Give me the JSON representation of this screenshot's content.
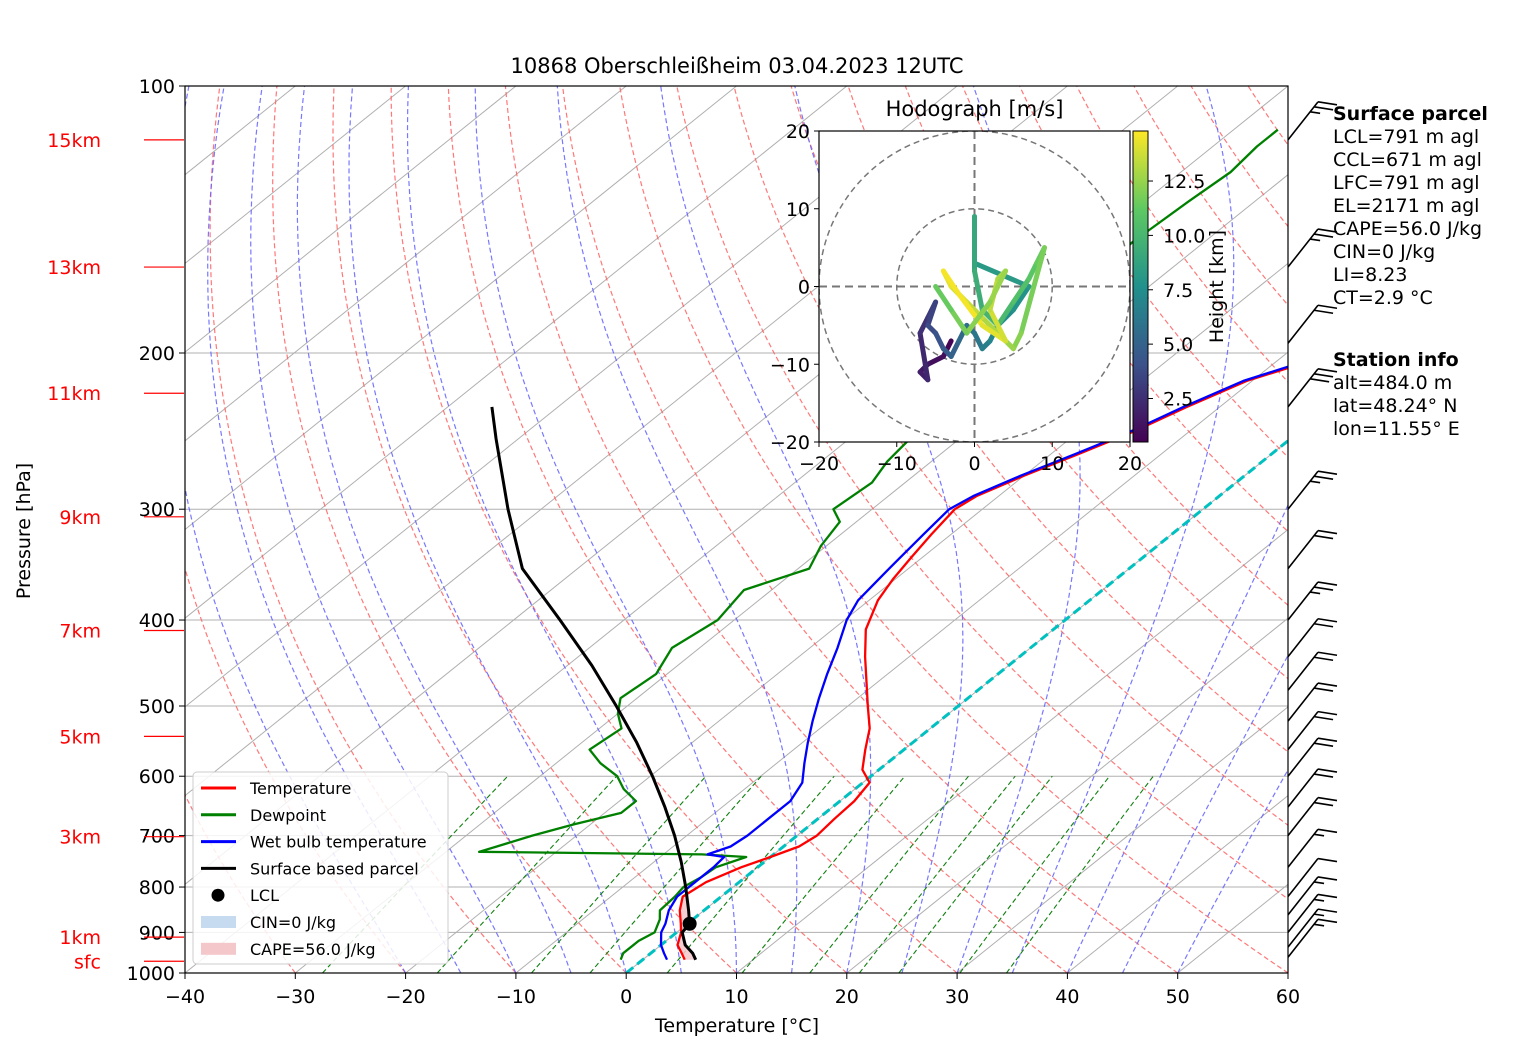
{
  "chart_data": {
    "type": "skew-t",
    "title": "10868 Oberschleißheim 03.04.2023 12UTC",
    "xlabel": "Temperature [°C]",
    "ylabel": "Pressure [hPa]",
    "xlim": [
      -40,
      60
    ],
    "ylim": [
      1000,
      100
    ],
    "log_pressure": true,
    "grid": true,
    "x_ticks": [
      -40,
      -30,
      -20,
      -10,
      0,
      10,
      20,
      30,
      40,
      50,
      60
    ],
    "x_tick_labels": [
      "−40",
      "−30",
      "−20",
      "−10",
      "0",
      "10",
      "20",
      "30",
      "40",
      "50",
      "60"
    ],
    "y_ticks": [
      1000,
      900,
      800,
      700,
      600,
      500,
      400,
      300,
      200,
      100
    ],
    "height_labels": [
      {
        "label": "sfc",
        "p": 970
      },
      {
        "label": "1km",
        "p": 911
      },
      {
        "label": "3km",
        "p": 702
      },
      {
        "label": "5km",
        "p": 541
      },
      {
        "label": "7km",
        "p": 411
      },
      {
        "label": "9km",
        "p": 306
      },
      {
        "label": "11km",
        "p": 222
      },
      {
        "label": "13km",
        "p": 160
      },
      {
        "label": "15km",
        "p": 115
      }
    ],
    "legend": {
      "placement": "lower-left",
      "entries": [
        {
          "label": "Temperature",
          "color": "#ff0000",
          "kind": "line"
        },
        {
          "label": "Dewpoint",
          "color": "#008000",
          "kind": "line"
        },
        {
          "label": "Wet bulb temperature",
          "color": "#0000ff",
          "kind": "line"
        },
        {
          "label": "Surface based parcel",
          "color": "#000000",
          "kind": "line"
        },
        {
          "label": "LCL",
          "color": "#000000",
          "kind": "dot"
        },
        {
          "label": "CIN=0 J/kg",
          "color": "#c6dbef",
          "kind": "patch"
        },
        {
          "label": "CAPE=56.0 J/kg",
          "color": "#f4c7cb",
          "kind": "patch"
        }
      ]
    },
    "series": [
      {
        "name": "Temperature",
        "color": "#ff0000",
        "points": [
          [
            966,
            3.8
          ],
          [
            950,
            2.8
          ],
          [
            930,
            1.5
          ],
          [
            900,
            0.4
          ],
          [
            880,
            -0.6
          ],
          [
            850,
            -2.2
          ],
          [
            820,
            -3.5
          ],
          [
            790,
            -3.0
          ],
          [
            760,
            -1.5
          ],
          [
            740,
            0.0
          ],
          [
            720,
            1.4
          ],
          [
            700,
            1.8
          ],
          [
            670,
            1.5
          ],
          [
            640,
            1.3
          ],
          [
            610,
            0.6
          ],
          [
            590,
            -1.5
          ],
          [
            560,
            -3.5
          ],
          [
            530,
            -5.5
          ],
          [
            500,
            -8.2
          ],
          [
            470,
            -11.0
          ],
          [
            440,
            -14.0
          ],
          [
            410,
            -17.0
          ],
          [
            380,
            -19.2
          ],
          [
            360,
            -20.2
          ],
          [
            340,
            -21.0
          ],
          [
            320,
            -21.8
          ],
          [
            300,
            -22.5
          ],
          [
            290,
            -22.0
          ],
          [
            275,
            -20.0
          ],
          [
            260,
            -17.5
          ],
          [
            245,
            -15.0
          ],
          [
            230,
            -13.0
          ],
          [
            215,
            -10.5
          ],
          [
            200,
            -5.5
          ],
          [
            185,
            -4.0
          ],
          [
            172,
            -3.2
          ],
          [
            160,
            0.0
          ],
          [
            150,
            3.0
          ],
          [
            140,
            4.0
          ],
          [
            130,
            4.5
          ],
          [
            120,
            5.7
          ],
          [
            112,
            9.0
          ],
          [
            107,
            10.0
          ]
        ]
      },
      {
        "name": "Dewpoint",
        "color": "#008000",
        "points": [
          [
            966,
            -2.0
          ],
          [
            950,
            -2.5
          ],
          [
            920,
            -2.5
          ],
          [
            900,
            -2.0
          ],
          [
            870,
            -3.0
          ],
          [
            850,
            -4.0
          ],
          [
            820,
            -4.2
          ],
          [
            800,
            -4.5
          ],
          [
            780,
            -4.0
          ],
          [
            760,
            -3.8
          ],
          [
            740,
            -2.2
          ],
          [
            735,
            -6.5
          ],
          [
            730,
            -27.0
          ],
          [
            720,
            -26.0
          ],
          [
            700,
            -24.0
          ],
          [
            680,
            -21.5
          ],
          [
            660,
            -18.5
          ],
          [
            640,
            -18.5
          ],
          [
            620,
            -21.0
          ],
          [
            600,
            -23.0
          ],
          [
            580,
            -26.0
          ],
          [
            560,
            -28.5
          ],
          [
            530,
            -28.0
          ],
          [
            510,
            -30.0
          ],
          [
            490,
            -31.5
          ],
          [
            460,
            -31.0
          ],
          [
            430,
            -32.5
          ],
          [
            400,
            -31.5
          ],
          [
            370,
            -32.5
          ],
          [
            350,
            -29.0
          ],
          [
            330,
            -30.5
          ],
          [
            310,
            -31.5
          ],
          [
            300,
            -33.5
          ],
          [
            280,
            -33.0
          ],
          [
            265,
            -34.0
          ],
          [
            250,
            -34.5
          ],
          [
            240,
            -35.5
          ],
          [
            230,
            -37.0
          ],
          [
            220,
            -38.0
          ],
          [
            210,
            -37.5
          ],
          [
            200,
            -37.0
          ],
          [
            190,
            -37.5
          ],
          [
            180,
            -37.0
          ],
          [
            165,
            -36.0
          ],
          [
            150,
            -36.5
          ],
          [
            135,
            -36.0
          ],
          [
            125,
            -35.5
          ],
          [
            117,
            -36.0
          ],
          [
            112,
            -36.0
          ]
        ]
      },
      {
        "name": "Wet bulb temperature",
        "color": "#0000ff",
        "points": [
          [
            966,
            2.2
          ],
          [
            950,
            1.2
          ],
          [
            930,
            0.0
          ],
          [
            900,
            -1.4
          ],
          [
            880,
            -2.0
          ],
          [
            850,
            -3.2
          ],
          [
            820,
            -4.0
          ],
          [
            790,
            -4.0
          ],
          [
            760,
            -4.0
          ],
          [
            740,
            -4.2
          ],
          [
            735,
            -6.0
          ],
          [
            720,
            -4.8
          ],
          [
            700,
            -4.5
          ],
          [
            670,
            -4.5
          ],
          [
            640,
            -4.5
          ],
          [
            610,
            -5.5
          ],
          [
            580,
            -7.5
          ],
          [
            550,
            -9.5
          ],
          [
            520,
            -11.5
          ],
          [
            490,
            -13.5
          ],
          [
            460,
            -15.5
          ],
          [
            430,
            -17.5
          ],
          [
            400,
            -19.8
          ],
          [
            380,
            -21.0
          ],
          [
            360,
            -21.5
          ],
          [
            340,
            -22.0
          ],
          [
            320,
            -22.5
          ],
          [
            300,
            -23.0
          ],
          [
            290,
            -22.3
          ],
          [
            275,
            -20.3
          ],
          [
            260,
            -17.8
          ],
          [
            245,
            -15.3
          ],
          [
            230,
            -13.3
          ],
          [
            215,
            -10.8
          ],
          [
            200,
            -6.0
          ],
          [
            185,
            -4.5
          ],
          [
            172,
            -3.8
          ],
          [
            160,
            -0.5
          ],
          [
            150,
            2.5
          ],
          [
            140,
            3.5
          ],
          [
            130,
            4.0
          ],
          [
            120,
            5.2
          ],
          [
            112,
            8.5
          ],
          [
            107,
            9.5
          ]
        ]
      },
      {
        "name": "Surface based parcel",
        "color": "#000000",
        "points": [
          [
            966,
            4.8
          ],
          [
            950,
            3.8
          ],
          [
            930,
            2.2
          ],
          [
            900,
            0.5
          ],
          [
            880,
            0.2
          ],
          [
            850,
            -1.4
          ],
          [
            800,
            -4.3
          ],
          [
            750,
            -7.5
          ],
          [
            700,
            -11.1
          ],
          [
            650,
            -15.2
          ],
          [
            600,
            -19.8
          ],
          [
            550,
            -25.0
          ],
          [
            500,
            -31.0
          ],
          [
            450,
            -37.8
          ],
          [
            400,
            -45.8
          ],
          [
            350,
            -55.0
          ],
          [
            300,
            -63.0
          ],
          [
            250,
            -72.0
          ],
          [
            230,
            -76.0
          ]
        ]
      }
    ],
    "lcl": {
      "p": 880,
      "t": 0.2
    },
    "zero_isotherm": {
      "color": "#00c0c0"
    },
    "wind_barbs": [
      {
        "p": 960,
        "speed_kt": 15
      },
      {
        "p": 935,
        "speed_kt": 15
      },
      {
        "p": 900,
        "speed_kt": 15
      },
      {
        "p": 860,
        "speed_kt": 15
      },
      {
        "p": 820,
        "speed_kt": 10
      },
      {
        "p": 760,
        "speed_kt": 15
      },
      {
        "p": 700,
        "speed_kt": 20
      },
      {
        "p": 650,
        "speed_kt": 20
      },
      {
        "p": 600,
        "speed_kt": 20
      },
      {
        "p": 560,
        "speed_kt": 20
      },
      {
        "p": 520,
        "speed_kt": 20
      },
      {
        "p": 480,
        "speed_kt": 20
      },
      {
        "p": 440,
        "speed_kt": 20
      },
      {
        "p": 400,
        "speed_kt": 25
      },
      {
        "p": 350,
        "speed_kt": 20
      },
      {
        "p": 300,
        "speed_kt": 25
      },
      {
        "p": 230,
        "speed_kt": 30
      },
      {
        "p": 195,
        "speed_kt": 20
      },
      {
        "p": 160,
        "speed_kt": 25
      },
      {
        "p": 115,
        "speed_kt": 25
      }
    ],
    "hodograph": {
      "title": "Hodograph [m/s]",
      "xlim": [
        -20,
        20
      ],
      "ylim": [
        -20,
        20
      ],
      "ticks": [
        -20,
        -10,
        0,
        10,
        20
      ],
      "tick_labels": [
        "−20",
        "−10",
        "0",
        "10",
        "20"
      ],
      "rings": [
        10,
        20
      ],
      "colorbar": {
        "label": "Height [km]",
        "min": 0.5,
        "max": 14.8,
        "ticks": [
          2.5,
          5.0,
          7.5,
          10.0,
          12.5
        ],
        "tick_labels": [
          "2.5",
          "5.0",
          "7.5",
          "10.0",
          "12.5"
        ]
      },
      "points": [
        [
          -3,
          -7,
          0.5
        ],
        [
          -4,
          -9,
          0.9
        ],
        [
          -6,
          -10,
          1.3
        ],
        [
          -7,
          -11,
          1.7
        ],
        [
          -6,
          -12,
          2.0
        ],
        [
          -7,
          -6,
          2.4
        ],
        [
          -6,
          -4,
          2.8
        ],
        [
          -5,
          -2,
          3.2
        ],
        [
          -6,
          -5,
          3.6
        ],
        [
          -5,
          -6,
          4.0
        ],
        [
          -4,
          -8,
          4.4
        ],
        [
          -3,
          -9,
          4.8
        ],
        [
          -2,
          -7,
          5.2
        ],
        [
          -1,
          -5,
          5.6
        ],
        [
          0,
          -6,
          6.0
        ],
        [
          1,
          -8,
          6.4
        ],
        [
          2,
          -7,
          6.8
        ],
        [
          3,
          -5,
          7.2
        ],
        [
          5,
          -3,
          7.6
        ],
        [
          7,
          0,
          8.0
        ],
        [
          0,
          3,
          8.4
        ],
        [
          0,
          9,
          8.8
        ],
        [
          0,
          2,
          9.2
        ],
        [
          1,
          -3,
          9.6
        ],
        [
          3,
          -5,
          10.0
        ],
        [
          5,
          -2,
          10.4
        ],
        [
          7,
          1,
          10.8
        ],
        [
          8,
          3,
          11.2
        ],
        [
          9,
          5,
          11.6
        ],
        [
          6,
          -6,
          12.0
        ],
        [
          5,
          -8,
          12.4
        ],
        [
          3,
          -6,
          12.8
        ],
        [
          1,
          -4,
          13.2
        ],
        [
          -1,
          -2,
          13.6
        ],
        [
          -3,
          0,
          14.0
        ],
        [
          -4,
          2,
          14.4
        ],
        [
          -2,
          -1,
          14.8
        ],
        [
          1,
          -5,
          14.4
        ],
        [
          4,
          -7,
          14.0
        ],
        [
          2,
          -3,
          13.6
        ],
        [
          3,
          1,
          13.2
        ],
        [
          4,
          2,
          12.8
        ],
        [
          2,
          -2,
          12.4
        ],
        [
          -1,
          -6,
          12.0
        ],
        [
          -3,
          -3,
          11.6
        ],
        [
          -5,
          0,
          11.2
        ]
      ]
    },
    "annotations": {
      "surface_parcel": {
        "title": "Surface parcel",
        "lines": [
          "LCL=791 m agl",
          "CCL=671 m agl",
          "LFC=791 m agl",
          "EL=2171 m agl",
          "CAPE=56.0 J/kg",
          "CIN=0 J/kg",
          "LI=8.23",
          "CT=2.9 °C"
        ]
      },
      "station_info": {
        "title": "Station info",
        "lines": [
          "alt=484.0 m",
          "lat=48.24° N",
          "lon=11.55° E"
        ]
      }
    }
  }
}
